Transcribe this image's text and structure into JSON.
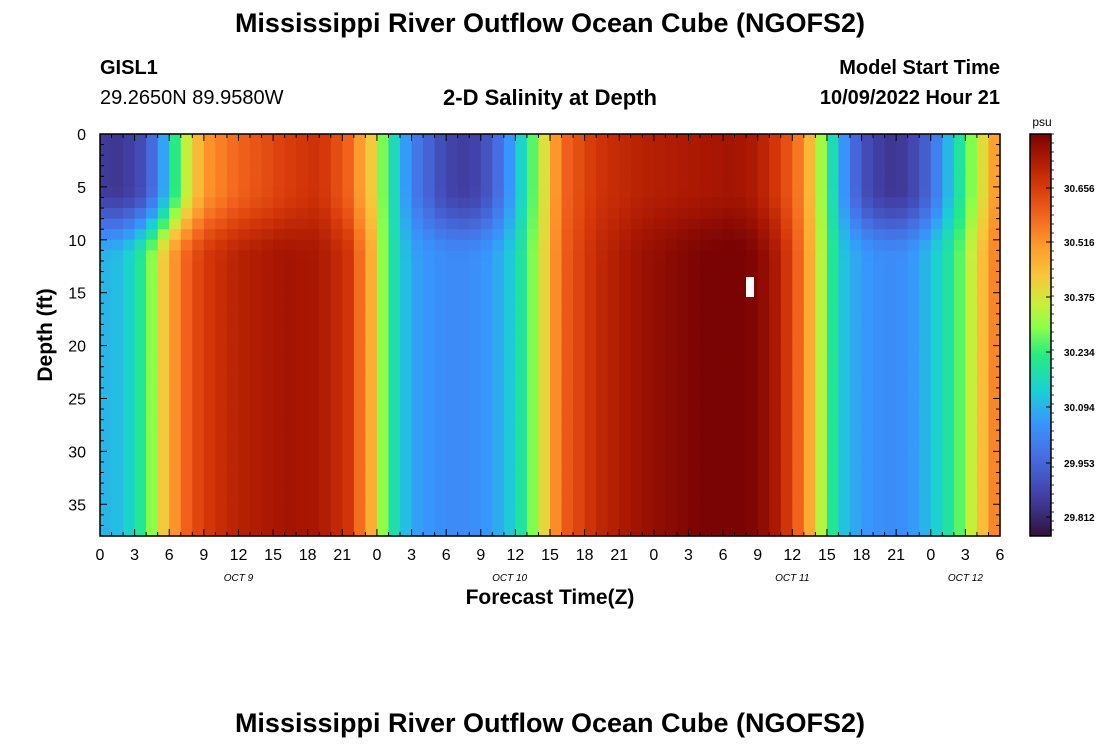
{
  "page": {
    "title": "Mississippi River Outflow Ocean Cube (NGOFS2)",
    "title_repeat": "Mississippi River Outflow Ocean Cube (NGOFS2)",
    "station_id": "GISL1",
    "station_coords": "29.2650N  89.9580W",
    "subtitle": "2-D Salinity at Depth",
    "model_start_label": "Model Start Time",
    "model_start_value": "10/09/2022 Hour 21"
  },
  "chart_data": {
    "type": "heatmap",
    "title": "2-D Salinity at Depth",
    "xlabel": "Forecast Time(Z)",
    "ylabel": "Depth (ft)",
    "colorbar_unit": "psu",
    "x_start_hour": 0,
    "x_end_hour": 78,
    "x_ticks": [
      {
        "h": 0,
        "label": "0"
      },
      {
        "h": 3,
        "label": "3"
      },
      {
        "h": 6,
        "label": "6"
      },
      {
        "h": 9,
        "label": "9"
      },
      {
        "h": 12,
        "label": "12"
      },
      {
        "h": 15,
        "label": "15"
      },
      {
        "h": 18,
        "label": "18"
      },
      {
        "h": 21,
        "label": "21"
      },
      {
        "h": 24,
        "label": "0"
      },
      {
        "h": 27,
        "label": "3"
      },
      {
        "h": 30,
        "label": "6"
      },
      {
        "h": 33,
        "label": "9"
      },
      {
        "h": 36,
        "label": "12"
      },
      {
        "h": 39,
        "label": "15"
      },
      {
        "h": 42,
        "label": "18"
      },
      {
        "h": 45,
        "label": "21"
      },
      {
        "h": 48,
        "label": "0"
      },
      {
        "h": 51,
        "label": "3"
      },
      {
        "h": 54,
        "label": "6"
      },
      {
        "h": 57,
        "label": "9"
      },
      {
        "h": 60,
        "label": "12"
      },
      {
        "h": 63,
        "label": "15"
      },
      {
        "h": 66,
        "label": "18"
      },
      {
        "h": 69,
        "label": "21"
      },
      {
        "h": 72,
        "label": "0"
      },
      {
        "h": 75,
        "label": "3"
      },
      {
        "h": 78,
        "label": "6"
      }
    ],
    "date_labels": [
      {
        "h": 12,
        "label": "OCT 9"
      },
      {
        "h": 35.5,
        "label": "OCT 10"
      },
      {
        "h": 60,
        "label": "OCT 11"
      },
      {
        "h": 75,
        "label": "OCT 12"
      }
    ],
    "ylim": [
      0,
      38
    ],
    "y_ticks": [
      0,
      5,
      10,
      15,
      20,
      25,
      30,
      35
    ],
    "colorbar_ticks": [
      "30.656",
      "30.516",
      "30.375",
      "30.234",
      "30.094",
      "29.953",
      "29.812"
    ],
    "colorbar_min": 29.76,
    "colorbar_max": 30.76,
    "salinity_profile": [
      {
        "h": 0,
        "surface": 29.85,
        "deep": 30.08
      },
      {
        "h": 2,
        "surface": 29.84,
        "deep": 30.1
      },
      {
        "h": 4,
        "surface": 29.9,
        "deep": 30.22
      },
      {
        "h": 5.5,
        "surface": 30.06,
        "deep": 30.4
      },
      {
        "h": 7,
        "surface": 30.28,
        "deep": 30.54
      },
      {
        "h": 9,
        "surface": 30.48,
        "deep": 30.63
      },
      {
        "h": 12,
        "surface": 30.56,
        "deep": 30.68
      },
      {
        "h": 16,
        "surface": 30.62,
        "deep": 30.71
      },
      {
        "h": 19,
        "surface": 30.65,
        "deep": 30.7
      },
      {
        "h": 21.5,
        "surface": 30.56,
        "deep": 30.64
      },
      {
        "h": 23.5,
        "surface": 30.4,
        "deep": 30.45
      },
      {
        "h": 25,
        "surface": 30.2,
        "deep": 30.2
      },
      {
        "h": 27,
        "surface": 30.0,
        "deep": 30.06
      },
      {
        "h": 30,
        "surface": 29.87,
        "deep": 30.02
      },
      {
        "h": 32,
        "surface": 29.85,
        "deep": 30.02
      },
      {
        "h": 34,
        "surface": 29.92,
        "deep": 30.05
      },
      {
        "h": 36,
        "surface": 30.08,
        "deep": 30.13
      },
      {
        "h": 38,
        "surface": 30.3,
        "deep": 30.32
      },
      {
        "h": 40,
        "surface": 30.55,
        "deep": 30.56
      },
      {
        "h": 43,
        "surface": 30.64,
        "deep": 30.66
      },
      {
        "h": 47,
        "surface": 30.68,
        "deep": 30.72
      },
      {
        "h": 52,
        "surface": 30.7,
        "deep": 30.76
      },
      {
        "h": 55,
        "surface": 30.71,
        "deep": 30.77
      },
      {
        "h": 57,
        "surface": 30.69,
        "deep": 30.75
      },
      {
        "h": 59,
        "surface": 30.62,
        "deep": 30.68
      },
      {
        "h": 61,
        "surface": 30.5,
        "deep": 30.52
      },
      {
        "h": 62.5,
        "surface": 30.3,
        "deep": 30.32
      },
      {
        "h": 64,
        "surface": 30.08,
        "deep": 30.12
      },
      {
        "h": 66,
        "surface": 29.9,
        "deep": 30.05
      },
      {
        "h": 68,
        "surface": 29.84,
        "deep": 30.02
      },
      {
        "h": 70,
        "surface": 29.85,
        "deep": 30.03
      },
      {
        "h": 72,
        "surface": 29.95,
        "deep": 30.1
      },
      {
        "h": 74,
        "surface": 30.13,
        "deep": 30.2
      },
      {
        "h": 76,
        "surface": 30.32,
        "deep": 30.38
      },
      {
        "h": 78,
        "surface": 30.52,
        "deep": 30.55
      }
    ]
  }
}
